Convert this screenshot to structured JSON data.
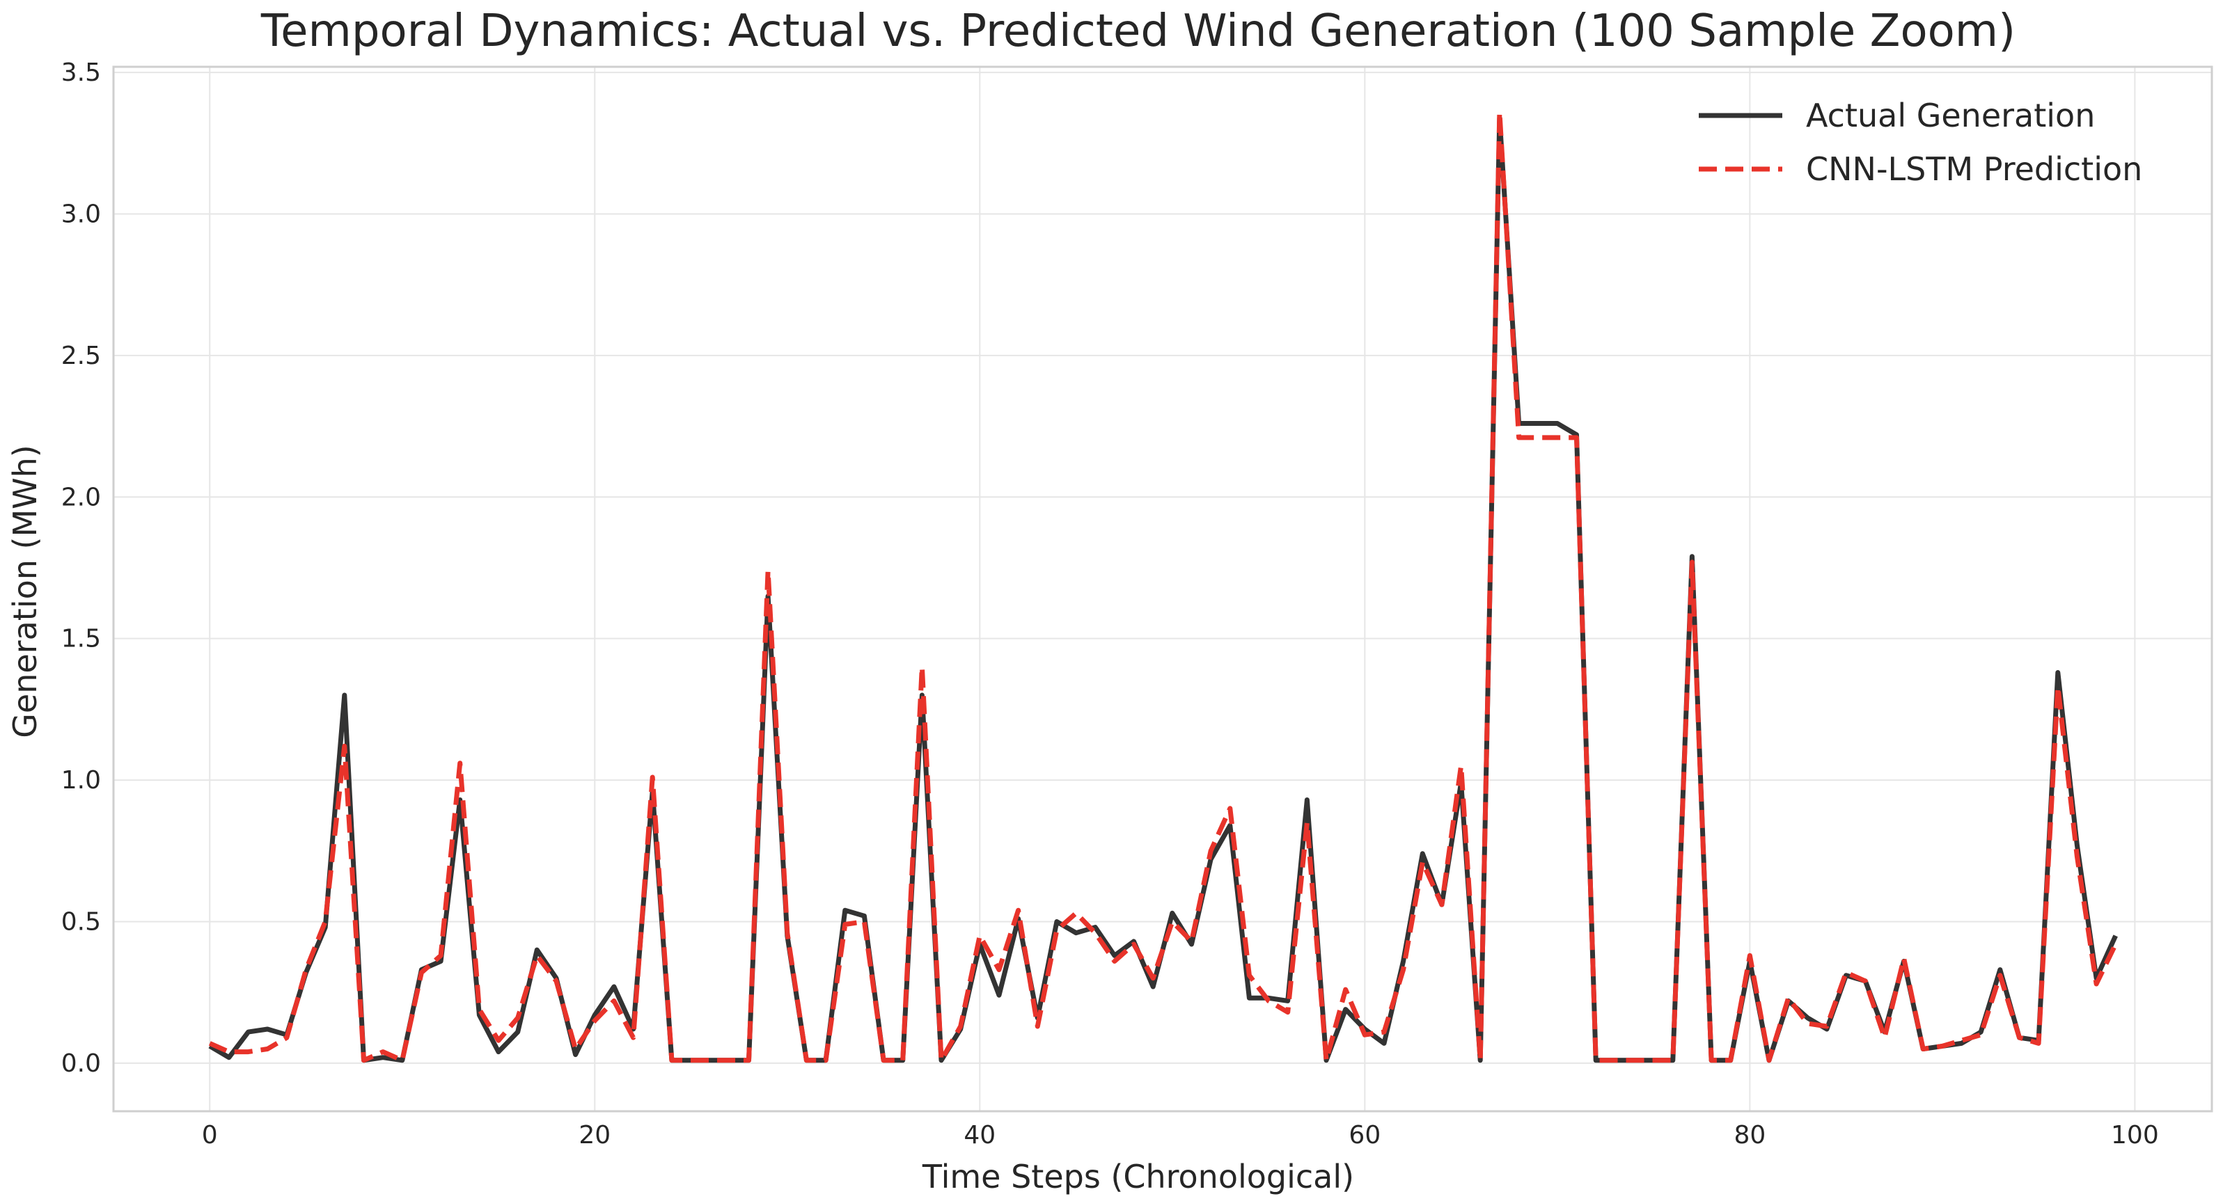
{
  "chart_data": {
    "type": "line",
    "title": "Temporal Dynamics: Actual vs. Predicted Wind Generation (100 Sample Zoom)",
    "xlabel": "Time Steps (Chronological)",
    "ylabel": "Generation (MWh)",
    "xlim": [
      -5,
      104
    ],
    "ylim": [
      -0.17,
      3.52
    ],
    "xticks": [
      0,
      20,
      40,
      60,
      80,
      100
    ],
    "yticks": [
      0.0,
      0.5,
      1.0,
      1.5,
      2.0,
      2.5,
      3.0,
      3.5
    ],
    "grid": true,
    "legend_position": "top-right",
    "series": [
      {
        "name": "Actual Generation",
        "color": "#333333",
        "style": "solid",
        "values": [
          0.06,
          0.02,
          0.11,
          0.12,
          0.1,
          0.32,
          0.48,
          1.3,
          0.01,
          0.02,
          0.01,
          0.33,
          0.36,
          0.93,
          0.17,
          0.04,
          0.11,
          0.4,
          0.3,
          0.03,
          0.17,
          0.27,
          0.12,
          0.96,
          0.01,
          0.01,
          0.01,
          0.01,
          0.01,
          1.65,
          0.45,
          0.01,
          0.01,
          0.54,
          0.52,
          0.01,
          0.01,
          1.3,
          0.01,
          0.12,
          0.42,
          0.24,
          0.51,
          0.16,
          0.5,
          0.46,
          0.48,
          0.38,
          0.43,
          0.27,
          0.53,
          0.42,
          0.72,
          0.84,
          0.23,
          0.23,
          0.22,
          0.93,
          0.01,
          0.19,
          0.12,
          0.07,
          0.36,
          0.74,
          0.56,
          0.99,
          0.01,
          3.34,
          2.26,
          2.26,
          2.26,
          2.22,
          0.01,
          0.01,
          0.01,
          0.01,
          0.01,
          1.79,
          0.01,
          0.01,
          0.36,
          0.01,
          0.22,
          0.16,
          0.12,
          0.31,
          0.29,
          0.11,
          0.36,
          0.05,
          0.06,
          0.07,
          0.11,
          0.33,
          0.09,
          0.08,
          1.38,
          0.77,
          0.3,
          0.45
        ]
      },
      {
        "name": "CNN-LSTM Prediction",
        "color": "#e8332a",
        "style": "dashed",
        "values": [
          0.07,
          0.04,
          0.04,
          0.05,
          0.09,
          0.33,
          0.5,
          1.12,
          0.01,
          0.04,
          0.01,
          0.32,
          0.38,
          1.06,
          0.19,
          0.08,
          0.16,
          0.38,
          0.29,
          0.05,
          0.15,
          0.22,
          0.09,
          1.01,
          0.01,
          0.01,
          0.01,
          0.01,
          0.01,
          1.74,
          0.46,
          0.01,
          0.01,
          0.49,
          0.5,
          0.01,
          0.01,
          1.4,
          0.01,
          0.13,
          0.45,
          0.33,
          0.54,
          0.13,
          0.47,
          0.53,
          0.46,
          0.36,
          0.42,
          0.3,
          0.5,
          0.43,
          0.75,
          0.9,
          0.31,
          0.22,
          0.18,
          0.85,
          0.01,
          0.26,
          0.1,
          0.11,
          0.33,
          0.71,
          0.56,
          1.05,
          0.01,
          3.36,
          2.21,
          2.21,
          2.21,
          2.21,
          0.01,
          0.01,
          0.01,
          0.01,
          0.01,
          1.77,
          0.01,
          0.01,
          0.38,
          0.01,
          0.23,
          0.14,
          0.13,
          0.32,
          0.29,
          0.09,
          0.37,
          0.05,
          0.06,
          0.08,
          0.1,
          0.31,
          0.09,
          0.07,
          1.33,
          0.73,
          0.28,
          0.42
        ]
      }
    ]
  }
}
